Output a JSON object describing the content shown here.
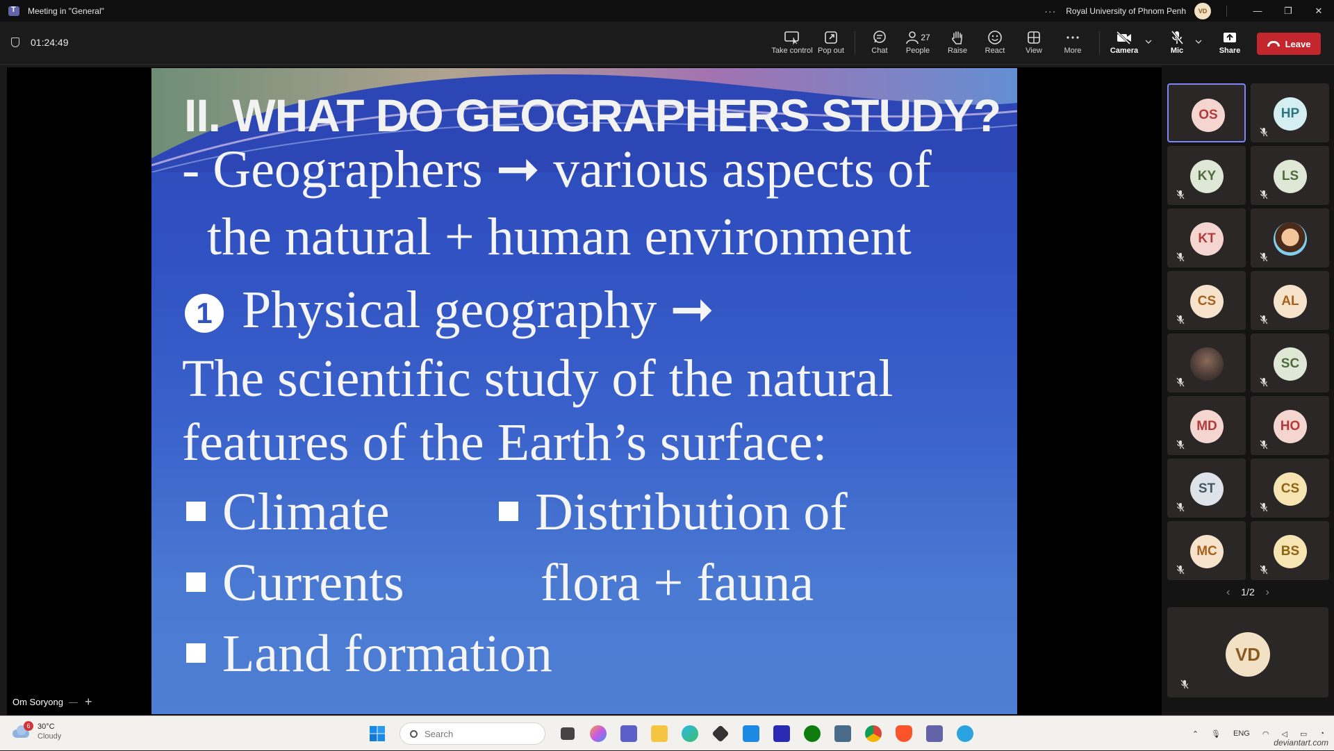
{
  "window": {
    "title": "Meeting in \"General\"",
    "more": "···",
    "org": "Royal University of Phnom Penh",
    "user_initials": "VD",
    "minimize": "—",
    "restore": "❐",
    "close": "✕"
  },
  "toolbar": {
    "timer": "01:24:49",
    "take_control": "Take control",
    "pop_out": "Pop out",
    "chat": "Chat",
    "people": "People",
    "people_count": "27",
    "raise": "Raise",
    "react": "React",
    "view": "View",
    "more": "More",
    "camera": "Camera",
    "mic": "Mic",
    "share": "Share",
    "leave": "Leave"
  },
  "slide": {
    "title": "II. WHAT DO GEOGRAPHERS STUDY?",
    "line1": "- Geographers ➞ various aspects of",
    "line2": "the natural + human environment",
    "num": "1",
    "line3": "Physical geography ➞",
    "line4": "The scientific study of the natural",
    "line5": "features of the Earth’s surface:",
    "bullets_left": [
      "Climate",
      "Currents",
      "Land formation"
    ],
    "bullet_right_1": "Distribution of",
    "bullet_right_2": "flora + fauna"
  },
  "presenter": {
    "name": "Om Soryong"
  },
  "participants": [
    {
      "initials": "OS",
      "style": "pink"
    },
    {
      "initials": "HP",
      "style": "cyan"
    },
    {
      "initials": "KY",
      "style": "sage"
    },
    {
      "initials": "LS",
      "style": "sage"
    },
    {
      "initials": "KT",
      "style": "pink"
    },
    {
      "initials": "",
      "style": "dora"
    },
    {
      "initials": "CS",
      "style": "peach"
    },
    {
      "initials": "AL",
      "style": "peach"
    },
    {
      "initials": "",
      "style": "photo"
    },
    {
      "initials": "SC",
      "style": "sage"
    },
    {
      "initials": "MD",
      "style": "pink"
    },
    {
      "initials": "HO",
      "style": "pink"
    },
    {
      "initials": "ST",
      "style": "gray"
    },
    {
      "initials": "CS",
      "style": "gold"
    },
    {
      "initials": "MC",
      "style": "peach"
    },
    {
      "initials": "BS",
      "style": "gold"
    }
  ],
  "pager": {
    "text": "1/2",
    "prev": "‹",
    "next": "›"
  },
  "self": {
    "initials": "VD"
  },
  "taskbar": {
    "weather_temp": "30°C",
    "weather_cond": "Cloudy",
    "weather_badge": "6",
    "search_placeholder": "Search",
    "lang": "ENG",
    "watermark": "deviantart.com"
  },
  "colors": {
    "leave": "#c4262e",
    "active_speaker": "#7f85f5",
    "slide_bg": "#3152c3"
  }
}
